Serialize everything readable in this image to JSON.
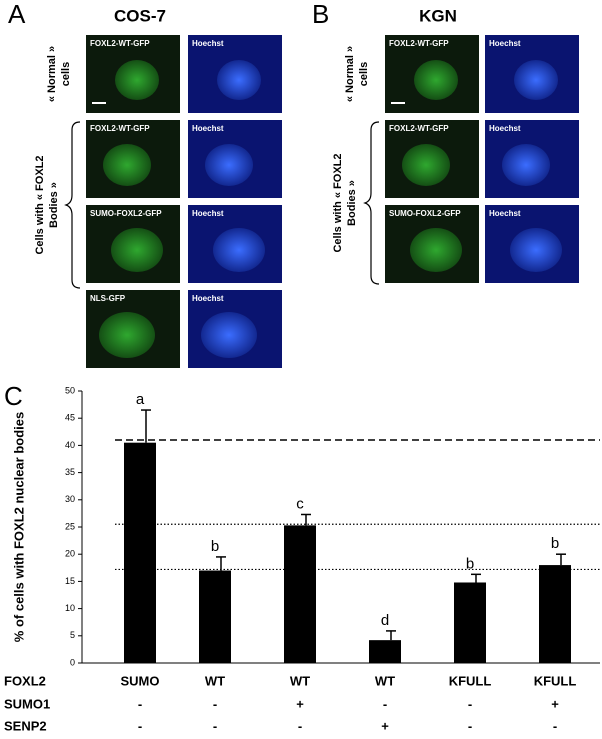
{
  "panels": [
    {
      "letter": "A",
      "title": "COS-7",
      "side_labels": [
        [
          "« Normal »",
          "cells"
        ],
        [
          "Cells with « FOXL2",
          "Bodies »"
        ]
      ],
      "images": [
        [
          "FOXL2-WT-GFP",
          "Hoechst"
        ],
        [
          "FOXL2-WT-GFP",
          "Hoechst"
        ],
        [
          "SUMO-FOXL2-GFP",
          "Hoechst"
        ],
        [
          "NLS-GFP",
          "Hoechst"
        ]
      ]
    },
    {
      "letter": "B",
      "title": "KGN",
      "side_labels": [
        [
          "« Normal »",
          "cells"
        ],
        [
          "Cells with « FOXL2",
          "Bodies »"
        ]
      ],
      "images": [
        [
          "FOXL2-WT-GFP",
          "Hoechst"
        ],
        [
          "FOXL2-WT-GFP",
          "Hoechst"
        ],
        [
          "SUMO-FOXL2-GFP",
          "Hoechst"
        ]
      ]
    }
  ],
  "chart_data": {
    "type": "bar",
    "panel_label": "C",
    "y_label": "% of cells with FOXL2 nuclear bodies",
    "category_label": "FOXL2",
    "categories": [
      "SUMO",
      "WT",
      "WT",
      "WT",
      "KFULL",
      "KFULL"
    ],
    "values": [
      40.5,
      17,
      25.3,
      4.2,
      14.8,
      18
    ],
    "errors": [
      6,
      2.5,
      2,
      1.7,
      1.5,
      2
    ],
    "value_labels": [
      "a",
      "b",
      "c",
      "d",
      "b",
      "b"
    ],
    "color": "#000000",
    "conditions": [
      {
        "name": "SUMO1",
        "values": [
          "-",
          "-",
          "+",
          "-",
          "-",
          "+"
        ]
      },
      {
        "name": "SENP2",
        "values": [
          "-",
          "-",
          "-",
          "+",
          "-",
          "-"
        ]
      }
    ],
    "reference_lines": [
      {
        "value": 41,
        "style": "dashed"
      },
      {
        "value": 25.5,
        "style": "dotted"
      },
      {
        "value": 17.2,
        "style": "dotted"
      }
    ],
    "ylim": [
      0,
      50
    ],
    "yticks": [
      0,
      5,
      10,
      15,
      20,
      25,
      30,
      35,
      40,
      45,
      50
    ]
  }
}
